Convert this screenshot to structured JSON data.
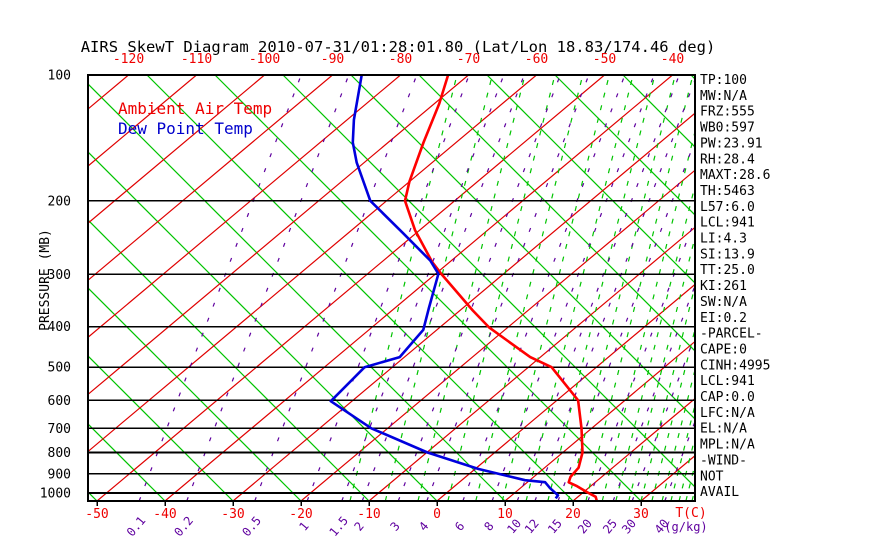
{
  "title": "AIRS SkewT Diagram 2010-07-31/01:28:01.80 (Lat/Lon 18.83/174.46 deg)",
  "legend": {
    "ambient": "Ambient Air Temp",
    "dew": "Dew Point Temp"
  },
  "colors": {
    "isotherm": "#e00000",
    "dry_adiabat": "#00c400",
    "moist_adiabat": "#00c400",
    "mixing_ratio": "#5f009f",
    "pressure_line": "#000000",
    "temp_profile": "#ff0000",
    "dew_profile": "#0000dd"
  },
  "stats": [
    "TP:100",
    "MW:N/A",
    "FRZ:555",
    "WB0:597",
    "PW:23.91",
    "RH:28.4",
    "MAXT:28.6",
    "TH:5463",
    "L57:6.0",
    "LCL:941",
    "LI:4.3",
    "SI:13.9",
    "TT:25.0",
    "KI:261",
    "SW:N/A",
    "EI:0.2",
    "-PARCEL-",
    "CAPE:0",
    "CINH:4995",
    "LCL:941",
    "CAP:0.0",
    "LFC:N/A",
    "EL:N/A",
    "MPL:N/A",
    "-WIND-",
    "NOT",
    "AVAIL"
  ],
  "chart_data": {
    "type": "line",
    "title": "AIRS SkewT Diagram 2010-07-31/01:28:01.80 (Lat/Lon 18.83/174.46 deg)",
    "x_axis": {
      "label": "T(C)",
      "ticks": [
        -50,
        -40,
        -30,
        -20,
        -10,
        0,
        10,
        20,
        30
      ]
    },
    "top_axis": {
      "ticks": [
        -120,
        -110,
        -100,
        -90,
        -80,
        -70,
        -60,
        -50,
        -40
      ]
    },
    "y_axis": {
      "label": "PRESSURE (MB)",
      "scale": "log",
      "range": [
        100,
        1048
      ],
      "ticks": [
        100,
        200,
        300,
        400,
        500,
        600,
        700,
        800,
        900,
        1000
      ]
    },
    "mixing_ratio": {
      "unit": "(g/kg)",
      "values": [
        "0.1",
        "0.2",
        "0.5",
        "1",
        "1.5",
        "2",
        "3",
        "4",
        "6",
        "8",
        "10",
        "12",
        "15",
        "20",
        "25",
        "30",
        "40"
      ],
      "bottom_t": [
        -43.8,
        -36.8,
        -26.8,
        -19.1,
        -14.0,
        -11.0,
        -5.7,
        -1.5,
        3.8,
        8.1,
        11.8,
        14.4,
        17.8,
        22.2,
        25.9,
        28.7,
        33.5
      ]
    },
    "isotherms_c": [
      -160,
      -150,
      -140,
      -130,
      -120,
      -110,
      -100,
      -90,
      -80,
      -70,
      -60,
      -50,
      -40,
      -30,
      -20,
      -10,
      0,
      10,
      20,
      30,
      40
    ],
    "dry_adiabats_bottom_t": [
      -50,
      -40,
      -30,
      -20,
      -10,
      0,
      10,
      20,
      30,
      40,
      50,
      60,
      70,
      80,
      90,
      100
    ],
    "moist_adiabats_bottom_t": [
      -12.8,
      -7.6,
      -2.8,
      1.6,
      5.7,
      9.6,
      13.1,
      16.3,
      19.3,
      21.9,
      24.3,
      26.3,
      28.2,
      30.0,
      31.6,
      33.1,
      34.4,
      35.6,
      36.6,
      37.5
    ],
    "series": [
      {
        "name": "Ambient Air Temp",
        "color": "#ff0000",
        "points": [
          [
            100,
            -73
          ],
          [
            117,
            -69.3
          ],
          [
            145,
            -64.8
          ],
          [
            180,
            -60
          ],
          [
            200,
            -57.3
          ],
          [
            235,
            -50.7
          ],
          [
            280,
            -42.6
          ],
          [
            300,
            -39
          ],
          [
            366,
            -28.1
          ],
          [
            402,
            -22.7
          ],
          [
            473,
            -11.5
          ],
          [
            500,
            -6.6
          ],
          [
            600,
            3.1
          ],
          [
            700,
            8.5
          ],
          [
            800,
            12.9
          ],
          [
            870,
            15.0
          ],
          [
            915,
            15.4
          ],
          [
            943,
            16.1
          ],
          [
            963,
            18.0
          ],
          [
            995,
            20.5
          ],
          [
            1021,
            22.6
          ],
          [
            1045,
            23.5
          ]
        ]
      },
      {
        "name": "Dew Point Temp",
        "color": "#0000dd",
        "points": [
          [
            100,
            -85.7
          ],
          [
            128,
            -79
          ],
          [
            145,
            -75.2
          ],
          [
            162,
            -71.1
          ],
          [
            200,
            -62.4
          ],
          [
            239,
            -51.9
          ],
          [
            278,
            -43.1
          ],
          [
            299,
            -39.6
          ],
          [
            361,
            -35
          ],
          [
            407,
            -32
          ],
          [
            473,
            -30.7
          ],
          [
            500,
            -34.1
          ],
          [
            603,
            -33.1
          ],
          [
            700,
            -22.4
          ],
          [
            800,
            -9.9
          ],
          [
            876,
            0.5
          ],
          [
            932,
            9.3
          ],
          [
            942,
            12.6
          ],
          [
            974,
            14.4
          ],
          [
            1013,
            16.8
          ],
          [
            1030,
            17.0
          ]
        ]
      }
    ]
  }
}
